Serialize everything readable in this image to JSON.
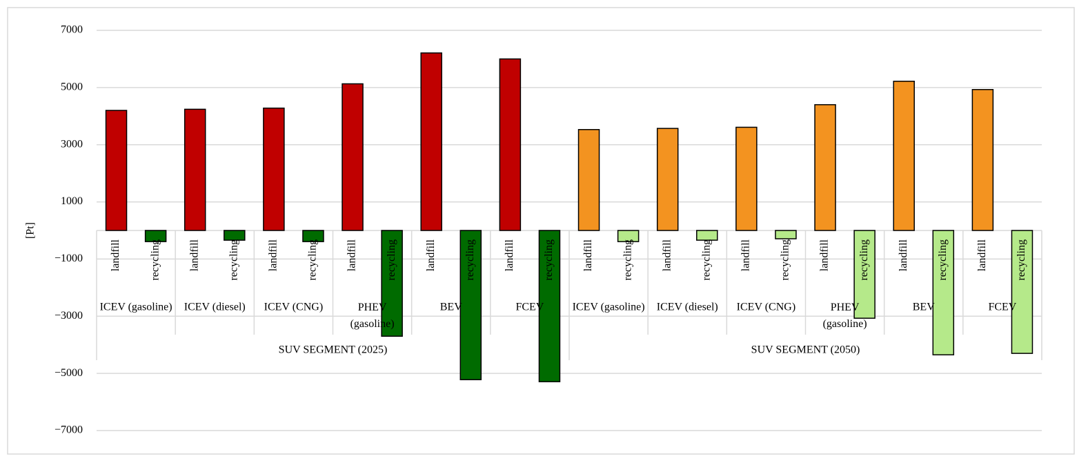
{
  "chart_data": {
    "type": "bar",
    "ylabel": "[Pt]",
    "ylim": [
      -7000,
      7000
    ],
    "yticks": [
      {
        "value": -7000,
        "label": "−7000"
      },
      {
        "value": -5000,
        "label": "−5000"
      },
      {
        "value": -3000,
        "label": "−3000"
      },
      {
        "value": -1000,
        "label": "−1000"
      },
      1000,
      3000,
      5000,
      7000
    ],
    "grid": true,
    "bar_labels": [
      "landfill",
      "recycling"
    ],
    "groups": [
      {
        "label": "SUV SEGMENT (2025)",
        "categories": [
          "ICEV (gasoline)",
          "ICEV (diesel)",
          "ICEV (CNG)",
          "PHEV (gasoline)",
          "BEV",
          "FCEV"
        ],
        "series": [
          {
            "color": "#c00000",
            "values": [
              4200,
              4240,
              4280,
              5130,
              6210,
              6000
            ]
          },
          {
            "color": "#006b00",
            "values": [
              -390,
              -340,
              -390,
              -3700,
              -5220,
              -5290
            ]
          }
        ]
      },
      {
        "label": "SUV SEGMENT (2050)",
        "categories": [
          "ICEV (gasoline)",
          "ICEV (diesel)",
          "ICEV (CNG)",
          "PHEV (gasoline)",
          "BEV",
          "FCEV"
        ],
        "series": [
          {
            "color": "#f39320",
            "values": [
              3530,
              3570,
              3610,
              4400,
              5220,
              4930
            ]
          },
          {
            "color": "#b5e98a",
            "values": [
              -390,
              -340,
              -290,
              -3070,
              -4350,
              -4300
            ]
          }
        ]
      }
    ]
  }
}
